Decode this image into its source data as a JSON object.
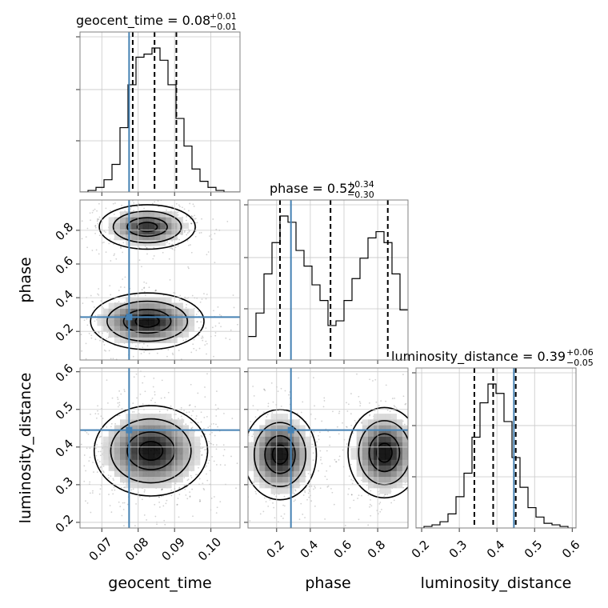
{
  "colors": {
    "truth": "#4682b4",
    "line": "#000000",
    "grid": "#c9c9c9"
  },
  "chart_data": {
    "type": "corner",
    "parameters": [
      "geocent_time",
      "phase",
      "luminosity_distance"
    ],
    "truths": [
      0.0775,
      0.285,
      0.445
    ],
    "ranges": [
      [
        0.064,
        0.108
      ],
      [
        0.03,
        0.98
      ],
      [
        0.185,
        0.61
      ]
    ],
    "ticks": [
      [
        0.07,
        0.08,
        0.09,
        0.1
      ],
      [
        0.2,
        0.4,
        0.6,
        0.8
      ],
      [
        0.2,
        0.3,
        0.4,
        0.5,
        0.6
      ]
    ],
    "tick_labels": [
      [
        "0.07",
        "0.08",
        "0.09",
        "0.10"
      ],
      [
        "0.2",
        "0.4",
        "0.6",
        "0.8"
      ],
      [
        "0.2",
        "0.3",
        "0.4",
        "0.5",
        "0.6"
      ]
    ],
    "histograms": [
      {
        "param": "geocent_time",
        "title_text": "geocent_time = 0.08",
        "title_plus": "+0.01",
        "title_minus": "−0.01",
        "quantiles": [
          0.0785,
          0.0845,
          0.0905
        ],
        "edges": [
          0.064,
          0.0662,
          0.0684,
          0.0706,
          0.0728,
          0.075,
          0.0772,
          0.0794,
          0.0816,
          0.0838,
          0.086,
          0.0882,
          0.0904,
          0.0926,
          0.0948,
          0.097,
          0.0992,
          0.1014,
          0.1036,
          0.1058,
          0.108
        ],
        "counts": [
          0,
          1,
          3,
          8,
          18,
          42,
          70,
          88,
          90,
          94,
          86,
          70,
          48,
          30,
          15,
          7,
          3,
          1,
          0,
          0
        ]
      },
      {
        "param": "phase",
        "title_text": "phase = 0.52",
        "title_plus": "+0.34",
        "title_minus": "−0.30",
        "quantiles": [
          0.22,
          0.52,
          0.86
        ],
        "edges": [
          0.03,
          0.0775,
          0.125,
          0.1725,
          0.22,
          0.2675,
          0.315,
          0.3625,
          0.41,
          0.4575,
          0.505,
          0.5525,
          0.6,
          0.6475,
          0.695,
          0.7425,
          0.79,
          0.8375,
          0.885,
          0.9325,
          0.98
        ],
        "counts": [
          15,
          30,
          55,
          75,
          92,
          88,
          70,
          60,
          48,
          38,
          22,
          25,
          38,
          52,
          65,
          78,
          82,
          75,
          55,
          32
        ]
      },
      {
        "param": "luminosity_distance",
        "title_text": "luminosity_distance = 0.39",
        "title_plus": "+0.06",
        "title_minus": "−0.05",
        "quantiles": [
          0.34,
          0.39,
          0.45
        ],
        "edges": [
          0.185,
          0.20625,
          0.2275,
          0.24875,
          0.27,
          0.29125,
          0.3125,
          0.33375,
          0.355,
          0.37625,
          0.3975,
          0.41875,
          0.44,
          0.46125,
          0.4825,
          0.50375,
          0.525,
          0.54625,
          0.5675,
          0.58875,
          0.61
        ],
        "counts": [
          0,
          1,
          2,
          4,
          9,
          20,
          35,
          58,
          80,
          92,
          86,
          68,
          45,
          26,
          13,
          7,
          3,
          2,
          1,
          0
        ]
      }
    ],
    "pairs": [
      {
        "x": "geocent_time",
        "y": "phase",
        "modes": [
          [
            0.0825,
            0.82,
            0.0055,
            0.055,
            0.45
          ],
          [
            0.0825,
            0.26,
            0.0065,
            0.07,
            0.55
          ]
        ]
      },
      {
        "x": "geocent_time",
        "y": "luminosity_distance",
        "modes": [
          [
            0.0835,
            0.39,
            0.0065,
            0.05,
            1.0
          ]
        ]
      },
      {
        "x": "phase",
        "y": "luminosity_distance",
        "modes": [
          [
            0.22,
            0.38,
            0.09,
            0.05,
            0.5
          ],
          [
            0.84,
            0.385,
            0.09,
            0.05,
            0.5
          ]
        ]
      }
    ]
  }
}
